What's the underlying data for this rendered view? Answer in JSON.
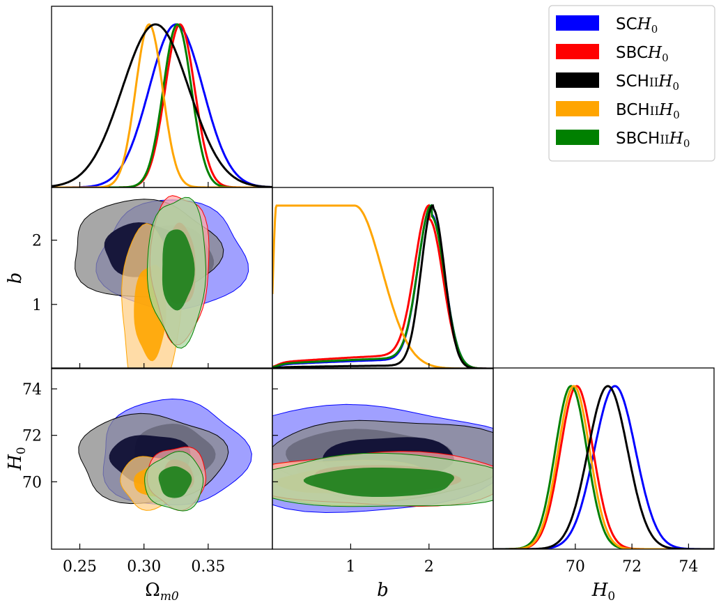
{
  "chart_data": {
    "type": "corner-plot",
    "parameters": [
      {
        "key": "Om",
        "label": "Ωm0",
        "range": [
          0.228,
          0.4
        ],
        "ticks": [
          0.25,
          0.3,
          0.35
        ],
        "tick_labels": [
          "0.25",
          "0.30",
          "0.35"
        ]
      },
      {
        "key": "b",
        "label": "b",
        "range": [
          0.0,
          2.82
        ],
        "ticks": [
          1,
          2
        ],
        "tick_labels": [
          "1",
          "2"
        ]
      },
      {
        "key": "H0",
        "label": "H0",
        "range": [
          67.1,
          74.9
        ],
        "ticks": [
          70,
          72,
          74
        ],
        "tick_labels": [
          "70",
          "72",
          "74"
        ]
      }
    ],
    "series": [
      {
        "name": "SCH0",
        "label_parts": [
          "SC",
          "H",
          "0"
        ],
        "color": "#0000ff",
        "Om": {
          "mean": 0.325,
          "sigma": 0.021
        },
        "b": {
          "mean": 2.03,
          "sigma": 0.17,
          "tail": 0.06
        },
        "H0": {
          "mean": 71.4,
          "sigma": 0.73
        }
      },
      {
        "name": "SBCH0",
        "label_parts": [
          "SBC",
          "H",
          "0"
        ],
        "color": "#ff0000",
        "Om": {
          "mean": 0.328,
          "sigma": 0.0115
        },
        "b": {
          "mean": 2.0,
          "sigma": 0.18,
          "tail": 0.09
        },
        "H0": {
          "mean": 70.05,
          "sigma": 0.58
        }
      },
      {
        "name": "SCHIIH0",
        "label_parts": [
          "SCH",
          "II",
          "H",
          "0"
        ],
        "color": "#000000",
        "Om": {
          "mean": 0.309,
          "sigma": 0.026
        },
        "b": {
          "mean": 2.05,
          "sigma": 0.15,
          "tail": 0.02
        },
        "H0": {
          "mean": 71.15,
          "sigma": 0.7
        }
      },
      {
        "name": "BCHIIH0",
        "label_parts": [
          "BCH",
          "II",
          "H",
          "0"
        ],
        "color": "#ffa500",
        "Om": {
          "mean": 0.304,
          "sigma": 0.0105
        },
        "b": {
          "mean": 0.75,
          "sigma": 0.55,
          "tail": 0.0
        },
        "H0": {
          "mean": 69.95,
          "sigma": 0.56
        }
      },
      {
        "name": "SBCHIIH0",
        "label_parts": [
          "SBCH",
          "II",
          "H",
          "0"
        ],
        "color": "#008000",
        "Om": {
          "mean": 0.326,
          "sigma": 0.011
        },
        "b": {
          "mean": 2.03,
          "sigma": 0.17,
          "tail": 0.07
        },
        "H0": {
          "mean": 69.85,
          "sigma": 0.56
        }
      }
    ],
    "contours_2d": {
      "b_vs_Om": [
        {
          "series": "SCH0",
          "center": [
            0.322,
            1.75
          ],
          "spread": [
            0.03,
            0.45
          ]
        },
        {
          "series": "SCHIIH0",
          "center": [
            0.3,
            1.85
          ],
          "spread": [
            0.03,
            0.4
          ]
        },
        {
          "series": "BCHIIH0",
          "center": [
            0.305,
            0.9
          ],
          "spread": [
            0.012,
            0.7
          ]
        },
        {
          "series": "SBCH0",
          "center": [
            0.328,
            1.6
          ],
          "spread": [
            0.012,
            0.6
          ]
        },
        {
          "series": "SBCHIIH0",
          "center": [
            0.326,
            1.55
          ],
          "spread": [
            0.012,
            0.6
          ]
        }
      ],
      "H0_vs_Om": [
        {
          "series": "SCH0",
          "center": [
            0.322,
            71.2
          ],
          "spread": [
            0.03,
            1.2
          ]
        },
        {
          "series": "SCHIIH0",
          "center": [
            0.305,
            71.0
          ],
          "spread": [
            0.03,
            1.0
          ]
        },
        {
          "series": "BCHIIH0",
          "center": [
            0.305,
            70.0
          ],
          "spread": [
            0.012,
            0.6
          ]
        },
        {
          "series": "SBCH0",
          "center": [
            0.326,
            70.2
          ],
          "spread": [
            0.012,
            0.7
          ]
        },
        {
          "series": "SBCHIIH0",
          "center": [
            0.324,
            70.0
          ],
          "spread": [
            0.012,
            0.65
          ]
        }
      ],
      "H0_vs_b": [
        {
          "series": "SCH0",
          "center": [
            1.2,
            71.0
          ],
          "spread": [
            1.0,
            1.2
          ]
        },
        {
          "series": "SCHIIH0",
          "center": [
            1.5,
            71.0
          ],
          "spread": [
            0.8,
            0.9
          ]
        },
        {
          "series": "BCHIIH0",
          "center": [
            0.8,
            70.0
          ],
          "spread": [
            0.7,
            0.5
          ]
        },
        {
          "series": "SBCH0",
          "center": [
            1.4,
            70.1
          ],
          "spread": [
            0.9,
            0.6
          ]
        },
        {
          "series": "SBCHIIH0",
          "center": [
            1.4,
            70.0
          ],
          "spread": [
            0.9,
            0.6
          ]
        }
      ]
    },
    "legend_position": "top-right"
  }
}
